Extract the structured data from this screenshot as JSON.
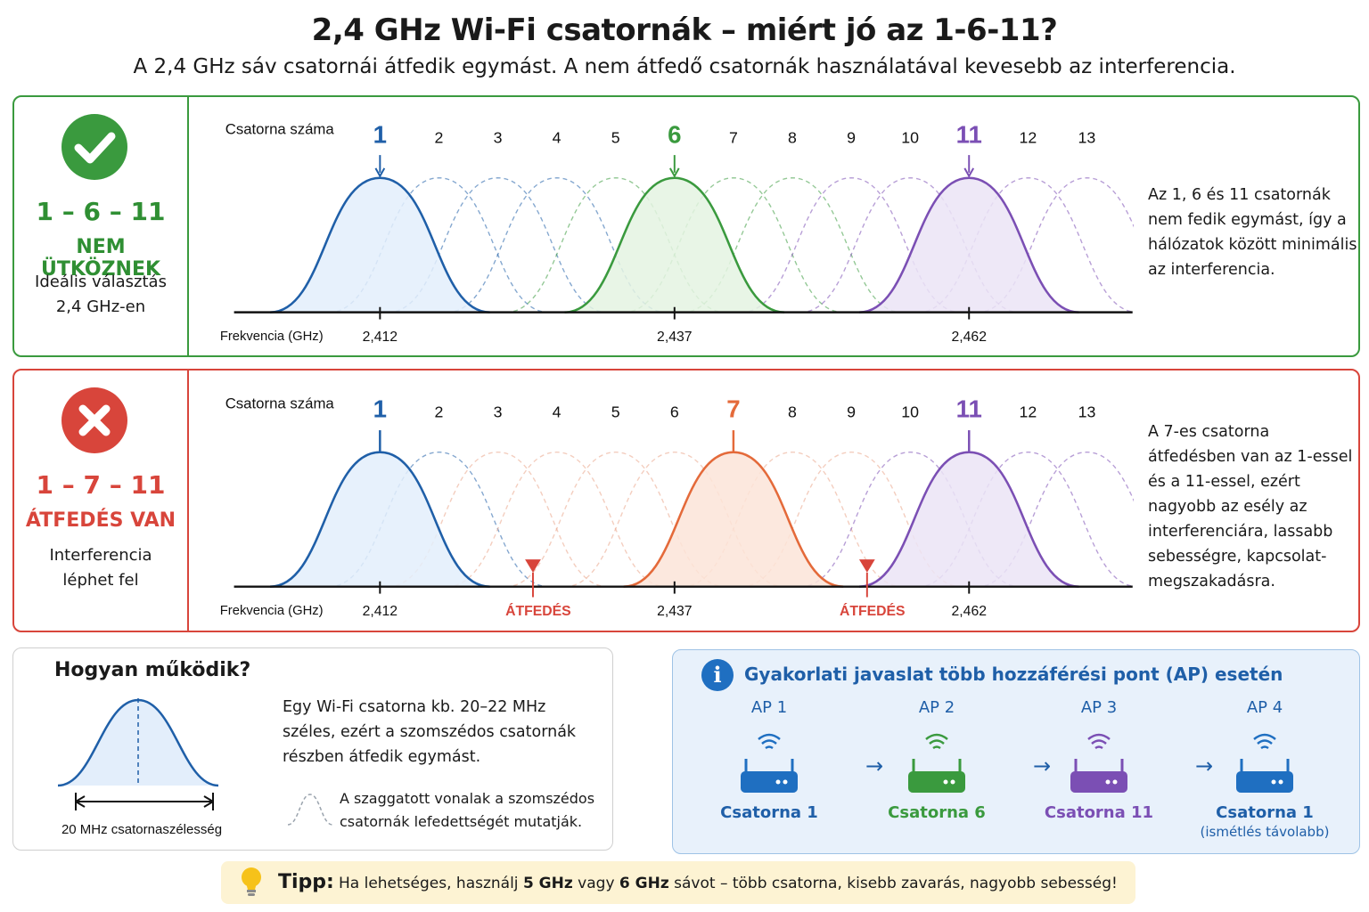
{
  "title": "2,4 GHz Wi-Fi csatornák – miért jó az 1-6-11?",
  "subtitle": "A 2,4 GHz sáv csatornái átfedik egymást. A nem átfedő csatornák használatával kevesebb az interferencia.",
  "colors": {
    "good": "#3a9a3e",
    "bad": "#d8453b",
    "ch1": "#1f5fa8",
    "ch6": "#3a9a3e",
    "ch7": "#e46a3a",
    "ch11": "#7b4fb4",
    "info": "#1f6fc1"
  },
  "panels": [
    {
      "status": "good",
      "icon": "checkmark-icon",
      "combo": "1 – 6 – 11",
      "verdict": "NEM ÜTKÖZNEK",
      "desc": "Ideális választás 2,4 GHz-en",
      "channel_label": "Csatorna száma",
      "freq_label": "Frekvencia (GHz)",
      "channels": [
        "1",
        "2",
        "3",
        "4",
        "5",
        "6",
        "7",
        "8",
        "9",
        "10",
        "11",
        "12",
        "13"
      ],
      "highlighted": [
        "1",
        "6",
        "11"
      ],
      "freq_ticks": [
        "2,412",
        "2,437",
        "2,462"
      ],
      "overlap_labels": [],
      "note": "Az 1, 6 és 11 csatornák nem fedik egymást, így a hálózatok között minimális az interferencia."
    },
    {
      "status": "bad",
      "icon": "x-icon",
      "combo": "1 – 7 – 11",
      "verdict": "ÁTFEDÉS VAN",
      "desc": "Interferencia léphet fel",
      "channel_label": "Csatorna száma",
      "freq_label": "Frekvencia (GHz)",
      "channels": [
        "1",
        "2",
        "3",
        "4",
        "5",
        "6",
        "7",
        "8",
        "9",
        "10",
        "11",
        "12",
        "13"
      ],
      "highlighted": [
        "1",
        "7",
        "11"
      ],
      "freq_ticks": [
        "2,412",
        "2,437",
        "2,462"
      ],
      "overlap_labels": [
        "ÁTFEDÉS",
        "ÁTFEDÉS"
      ],
      "note": "A 7-es csatorna átfedésben van az 1-essel és a 11-essel, ezért nagyobb az esély az interferenciára, lassabb sebességre, kapcsolat-megszakadásra."
    }
  ],
  "how": {
    "heading": "Hogyan működik?",
    "width_label": "20 MHz csatornaszélesség",
    "text": "Egy Wi-Fi csatorna kb. 20–22 MHz széles, ezért a szomszédos csatornák részben átfedik egymást.",
    "legend": "A szaggatott vonalak a szomszédos csatornák lefedettségét mutatják."
  },
  "ap": {
    "heading": "Gyakorlati javaslat több hozzáférési pont (AP) esetén",
    "units": [
      {
        "name": "AP 1",
        "channel": "Csatorna 1",
        "color": "#1f6fc1",
        "note": ""
      },
      {
        "name": "AP 2",
        "channel": "Csatorna 6",
        "color": "#3a9a3e",
        "note": ""
      },
      {
        "name": "AP 3",
        "channel": "Csatorna 11",
        "color": "#7b4fb4",
        "note": ""
      },
      {
        "name": "AP 4",
        "channel": "Csatorna 1",
        "color": "#1f6fc1",
        "note": "(ismétlés távolabb)"
      }
    ],
    "arrow": "→"
  },
  "tip": {
    "label": "Tipp:",
    "pre": "Ha lehetséges, használj ",
    "b1": "5 GHz",
    "mid": " vagy ",
    "b2": "6 GHz",
    "post": " sávot – több csatorna, kisebb zavarás, nagyobb sebesség!"
  }
}
